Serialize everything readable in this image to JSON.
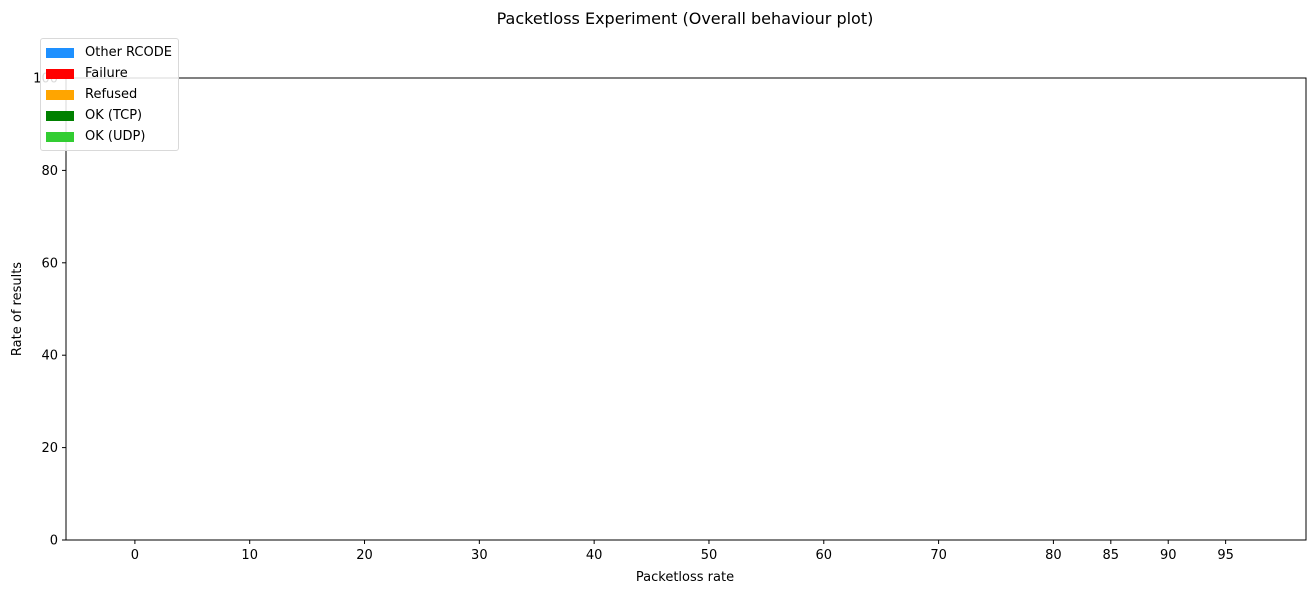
{
  "chart_data": {
    "type": "bar",
    "title": "Packetloss Experiment (Overall behaviour plot)",
    "xlabel": "Packetloss rate",
    "ylabel": "Rate of results",
    "x_ticks": [
      "0",
      "10",
      "20",
      "30",
      "40",
      "50",
      "60",
      "70",
      "80",
      "85",
      "90",
      "95"
    ],
    "x_values": [
      0,
      10,
      20,
      30,
      40,
      50,
      60,
      70,
      80,
      85,
      90,
      95
    ],
    "xlim": [
      -6,
      102
    ],
    "ylim": [
      0,
      100
    ],
    "y_ticks": [
      0,
      20,
      40,
      60,
      80,
      100
    ],
    "stacked": true,
    "series": [
      {
        "name": "Other RCODE",
        "color": "#1e90ff",
        "values": [
          0,
          0,
          0,
          0,
          0,
          0,
          0,
          0,
          0,
          0,
          0,
          0
        ]
      },
      {
        "name": "Failure",
        "color": "#ff0000",
        "values": [
          0,
          0,
          0,
          0,
          0,
          0,
          0,
          0,
          0,
          0,
          0,
          0
        ]
      },
      {
        "name": "Refused",
        "color": "#ffa500",
        "values": [
          0,
          0,
          0,
          0,
          0,
          0,
          0,
          0,
          0,
          0,
          0,
          0
        ]
      },
      {
        "name": "OK (TCP)",
        "color": "#008000",
        "values": [
          0,
          0,
          0,
          0,
          0,
          0,
          0,
          0,
          0,
          0,
          0,
          0
        ]
      },
      {
        "name": "OK (UDP)",
        "color": "#32cd32",
        "values": [
          0,
          0,
          0,
          0,
          0,
          0,
          0,
          0,
          0,
          0,
          0,
          0
        ]
      }
    ],
    "legend": {
      "placement": "top-left"
    },
    "grid": false
  }
}
